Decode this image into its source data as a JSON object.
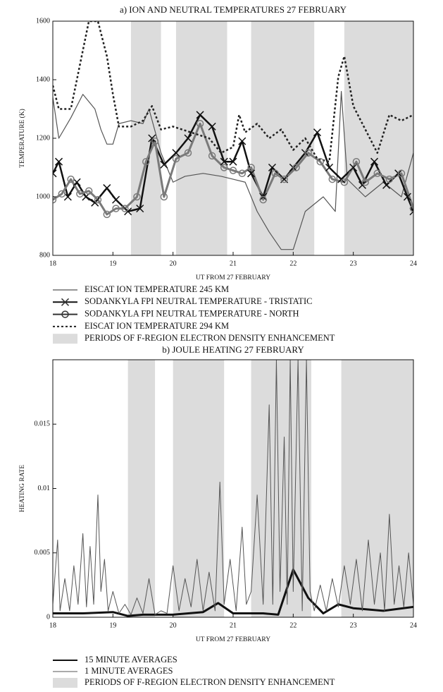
{
  "chart_data": [
    {
      "type": "line",
      "title": "a) ION AND NEUTRAL TEMPERATURES 27 FEBRUARY",
      "xlabel": "UT FROM 27 FEBRUARY",
      "ylabel": "TEMPERATURE (K)",
      "xlim": [
        18,
        24
      ],
      "xticks": [
        18,
        19,
        20,
        21,
        22,
        23,
        24
      ],
      "ylim": [
        800,
        1600
      ],
      "yticks": [
        800,
        1000,
        1200,
        1400,
        1600
      ],
      "shaded_periods": [
        [
          19.3,
          19.8
        ],
        [
          20.05,
          20.9
        ],
        [
          21.3,
          22.35
        ],
        [
          22.85,
          24
        ]
      ],
      "shade_color": "#dcdcdc",
      "shade_label": "PERIODS OF F-REGION ELECTRON DENSITY ENHANCEMENT",
      "series": [
        {
          "name": "EISCAT ION TEMPERATURE 245 KM",
          "color": "#555555",
          "width": 1.2,
          "dash": "solid",
          "marker": "none",
          "x": [
            18,
            18.1,
            18.3,
            18.5,
            18.7,
            18.8,
            18.9,
            19.0,
            19.1,
            19.3,
            19.5,
            19.6,
            19.8,
            20.0,
            20.2,
            20.5,
            20.8,
            21.0,
            21.2,
            21.4,
            21.6,
            21.8,
            22.0,
            22.2,
            22.5,
            22.7,
            22.8,
            22.9,
            23.2,
            23.5,
            23.8,
            24
          ],
          "values": [
            1340,
            1200,
            1270,
            1350,
            1300,
            1230,
            1180,
            1180,
            1250,
            1260,
            1250,
            1300,
            1150,
            1050,
            1070,
            1080,
            1070,
            1060,
            1050,
            950,
            880,
            820,
            820,
            950,
            1000,
            950,
            1360,
            1060,
            1000,
            1050,
            1000,
            1150
          ]
        },
        {
          "name": "SODANKYLA FPI NEUTRAL TEMPERATURE - TRISTATIC",
          "color": "#111111",
          "width": 2.5,
          "dash": "solid",
          "marker": "x",
          "x": [
            18,
            18.1,
            18.25,
            18.4,
            18.55,
            18.7,
            18.9,
            19.05,
            19.25,
            19.45,
            19.65,
            19.85,
            20.05,
            20.25,
            20.45,
            20.65,
            20.85,
            21.0,
            21.15,
            21.3,
            21.5,
            21.65,
            21.85,
            22.0,
            22.2,
            22.4,
            22.6,
            22.8,
            23.0,
            23.15,
            23.35,
            23.55,
            23.75,
            23.9,
            24
          ],
          "values": [
            1080,
            1120,
            1000,
            1050,
            1000,
            980,
            1030,
            990,
            950,
            960,
            1200,
            1110,
            1150,
            1200,
            1280,
            1240,
            1120,
            1120,
            1190,
            1080,
            1000,
            1100,
            1060,
            1100,
            1150,
            1220,
            1100,
            1060,
            1100,
            1040,
            1120,
            1040,
            1080,
            1000,
            950
          ]
        },
        {
          "name": "SODANKYLA FPI NEUTRAL TEMPERATURE - NORTH",
          "color": "#7a7a7a",
          "width": 3,
          "dash": "solid",
          "marker": "o",
          "x": [
            18,
            18.15,
            18.3,
            18.45,
            18.6,
            18.75,
            18.9,
            19.05,
            19.2,
            19.4,
            19.55,
            19.7,
            19.85,
            20.05,
            20.25,
            20.45,
            20.65,
            20.85,
            21.0,
            21.15,
            21.3,
            21.5,
            21.7,
            21.85,
            22.05,
            22.25,
            22.45,
            22.65,
            22.85,
            23.05,
            23.2,
            23.4,
            23.6,
            23.8,
            24
          ],
          "values": [
            990,
            1010,
            1060,
            1010,
            1020,
            990,
            940,
            960,
            960,
            1000,
            1120,
            1190,
            1000,
            1130,
            1150,
            1250,
            1140,
            1100,
            1090,
            1080,
            1100,
            990,
            1080,
            1060,
            1100,
            1150,
            1120,
            1060,
            1050,
            1120,
            1050,
            1080,
            1060,
            1080,
            960
          ]
        },
        {
          "name": "EISCAT ION TEMPERATURE 294 KM",
          "color": "#222222",
          "width": 2.5,
          "dash": "dot",
          "marker": "none",
          "x": [
            18,
            18.1,
            18.3,
            18.5,
            18.6,
            18.75,
            18.9,
            19.0,
            19.1,
            19.3,
            19.5,
            19.65,
            19.8,
            20.0,
            20.3,
            20.6,
            20.8,
            21.0,
            21.1,
            21.2,
            21.4,
            21.6,
            21.8,
            22.0,
            22.2,
            22.4,
            22.6,
            22.75,
            22.85,
            23.0,
            23.2,
            23.4,
            23.6,
            23.8,
            24
          ],
          "values": [
            1380,
            1300,
            1300,
            1500,
            1600,
            1600,
            1480,
            1350,
            1240,
            1240,
            1260,
            1310,
            1230,
            1240,
            1220,
            1200,
            1150,
            1170,
            1280,
            1220,
            1250,
            1200,
            1230,
            1160,
            1200,
            1130,
            1120,
            1410,
            1480,
            1310,
            1230,
            1150,
            1280,
            1260,
            1280
          ]
        }
      ]
    },
    {
      "type": "line",
      "title": "b) JOULE HEATING 27 FEBRUARY",
      "xlabel": "UT FROM 27 FEBRUARY",
      "ylabel": "HEATING RATE",
      "xlim": [
        18,
        24
      ],
      "xticks": [
        18,
        19,
        20,
        21,
        22,
        23,
        24
      ],
      "ylim": [
        0,
        0.02
      ],
      "yticks": [
        0,
        0.005,
        0.01,
        0.015
      ],
      "shaded_periods": [
        [
          19.25,
          19.7
        ],
        [
          20.0,
          20.85
        ],
        [
          21.3,
          22.3
        ],
        [
          22.8,
          24
        ]
      ],
      "shade_color": "#dcdcdc",
      "shade_label": "PERIODS OF F-REGION ELECTRON DENSITY ENHANCEMENT",
      "series": [
        {
          "name": "15 MINUTE AVERAGES",
          "color": "#111111",
          "width": 3,
          "dash": "solid",
          "marker": "none",
          "x": [
            18,
            18.5,
            19,
            19.25,
            19.5,
            20,
            20.5,
            20.75,
            21,
            21.5,
            21.75,
            22,
            22.25,
            22.5,
            22.75,
            23,
            23.5,
            24
          ],
          "values": [
            0.0003,
            0.0003,
            0.0004,
            0.0001,
            0.0002,
            0.0002,
            0.0004,
            0.0011,
            0.0003,
            0.0003,
            0.0002,
            0.0037,
            0.0015,
            0.0003,
            0.001,
            0.0007,
            0.0005,
            0.0008
          ]
        },
        {
          "name": "1 MINUTE AVERAGES",
          "color": "#555555",
          "width": 1,
          "dash": "solid",
          "marker": "none",
          "x": [
            18.0,
            18.08,
            18.12,
            18.2,
            18.28,
            18.35,
            18.42,
            18.5,
            18.56,
            18.62,
            18.68,
            18.75,
            18.8,
            18.86,
            18.92,
            19.0,
            19.1,
            19.2,
            19.3,
            19.4,
            19.5,
            19.6,
            19.7,
            19.8,
            19.9,
            20.0,
            20.1,
            20.2,
            20.3,
            20.4,
            20.5,
            20.6,
            20.7,
            20.78,
            20.85,
            20.95,
            21.05,
            21.15,
            21.22,
            21.3,
            21.4,
            21.5,
            21.6,
            21.66,
            21.72,
            21.78,
            21.85,
            21.9,
            21.95,
            22.0,
            22.08,
            22.15,
            22.22,
            22.28,
            22.35,
            22.45,
            22.55,
            22.65,
            22.75,
            22.85,
            22.95,
            23.05,
            23.15,
            23.25,
            23.35,
            23.45,
            23.52,
            23.6,
            23.68,
            23.76,
            23.84,
            23.92,
            24.0
          ],
          "values": [
            0.001,
            0.006,
            0.0005,
            0.003,
            0.0005,
            0.004,
            0.001,
            0.0065,
            0.0008,
            0.0055,
            0.001,
            0.0095,
            0.002,
            0.0045,
            0.0005,
            0.002,
            0.0003,
            0.001,
            0.0002,
            0.0015,
            0.0003,
            0.003,
            0.0002,
            0.0005,
            0.0003,
            0.004,
            0.0005,
            0.003,
            0.0008,
            0.0045,
            0.0005,
            0.0035,
            0.0005,
            0.0105,
            0.001,
            0.0045,
            0.0005,
            0.007,
            0.001,
            0.002,
            0.0095,
            0.001,
            0.0165,
            0.001,
            0.02,
            0.002,
            0.014,
            0.001,
            0.02,
            0.002,
            0.02,
            0.0005,
            0.02,
            0.002,
            0.0005,
            0.0025,
            0.0005,
            0.003,
            0.0008,
            0.004,
            0.001,
            0.0045,
            0.0005,
            0.006,
            0.001,
            0.005,
            0.0005,
            0.008,
            0.001,
            0.004,
            0.0008,
            0.005,
            0.001
          ]
        }
      ]
    }
  ]
}
